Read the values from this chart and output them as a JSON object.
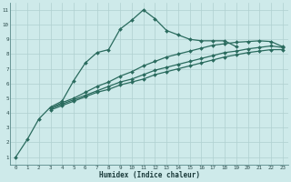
{
  "xlabel": "Humidex (Indice chaleur)",
  "bg_color": "#ceeaea",
  "grid_color": "#afd0d0",
  "line_color": "#2a6b5e",
  "xlim": [
    -0.5,
    23.5
  ],
  "ylim": [
    0.5,
    11.5
  ],
  "xticks": [
    0,
    1,
    2,
    3,
    4,
    5,
    6,
    7,
    8,
    9,
    10,
    11,
    12,
    13,
    14,
    15,
    16,
    17,
    18,
    19,
    20,
    21,
    22,
    23
  ],
  "yticks": [
    1,
    2,
    3,
    4,
    5,
    6,
    7,
    8,
    9,
    10,
    11
  ],
  "lines": [
    {
      "x": [
        0,
        1,
        2,
        3,
        4,
        5,
        6,
        7,
        8,
        9,
        10,
        11,
        12,
        13,
        14,
        15,
        16,
        17,
        18,
        19,
        20,
        21,
        22,
        23
      ],
      "y": [
        1.0,
        2.2,
        3.6,
        4.4,
        4.8,
        6.2,
        7.4,
        8.1,
        8.3,
        9.7,
        10.3,
        11.0,
        10.4,
        9.6,
        9.3,
        9.0,
        8.9,
        8.9,
        8.9,
        8.5,
        null,
        null,
        null,
        null
      ]
    },
    {
      "x": [
        3,
        4,
        5,
        6,
        7,
        8,
        9,
        10,
        11,
        12,
        13,
        14,
        15,
        16,
        17,
        18,
        19,
        20,
        21,
        22,
        23
      ],
      "y": [
        4.3,
        4.7,
        5.0,
        5.4,
        5.8,
        6.1,
        6.5,
        6.8,
        7.2,
        7.5,
        7.8,
        8.0,
        8.2,
        8.4,
        8.6,
        8.7,
        8.8,
        8.85,
        8.9,
        8.85,
        8.5
      ]
    },
    {
      "x": [
        3,
        4,
        5,
        6,
        7,
        8,
        9,
        10,
        11,
        12,
        13,
        14,
        15,
        16,
        17,
        18,
        19,
        20,
        21,
        22,
        23
      ],
      "y": [
        4.3,
        4.6,
        4.9,
        5.2,
        5.5,
        5.8,
        6.1,
        6.3,
        6.6,
        6.9,
        7.1,
        7.3,
        7.5,
        7.7,
        7.9,
        8.1,
        8.2,
        8.35,
        8.45,
        8.55,
        8.45
      ]
    },
    {
      "x": [
        3,
        4,
        5,
        6,
        7,
        8,
        9,
        10,
        11,
        12,
        13,
        14,
        15,
        16,
        17,
        18,
        19,
        20,
        21,
        22,
        23
      ],
      "y": [
        4.2,
        4.5,
        4.8,
        5.1,
        5.4,
        5.6,
        5.9,
        6.1,
        6.3,
        6.6,
        6.8,
        7.0,
        7.2,
        7.4,
        7.6,
        7.8,
        7.95,
        8.1,
        8.2,
        8.3,
        8.3
      ]
    }
  ],
  "marker": "D",
  "markersize": 2.0,
  "linewidth": 0.9
}
